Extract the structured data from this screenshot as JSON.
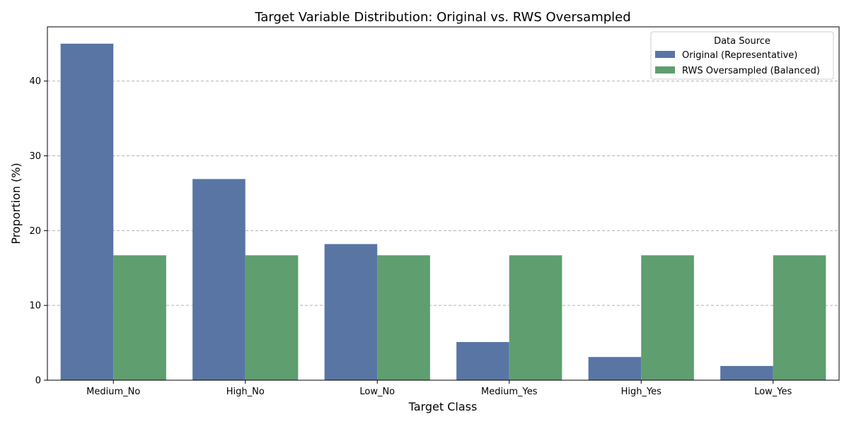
{
  "chart_data": {
    "type": "bar",
    "title": "Target Variable Distribution: Original vs. RWS Oversampled",
    "xlabel": "Target Class",
    "ylabel": "Proportion (%)",
    "categories": [
      "Medium_No",
      "High_No",
      "Low_No",
      "Medium_Yes",
      "High_Yes",
      "Low_Yes"
    ],
    "series": [
      {
        "name": "Original (Representative)",
        "color": "#5975a4",
        "values": [
          45.0,
          26.9,
          18.2,
          5.1,
          3.1,
          1.9
        ]
      },
      {
        "name": "RWS Oversampled (Balanced)",
        "color": "#5f9e6e",
        "values": [
          16.7,
          16.7,
          16.7,
          16.7,
          16.7,
          16.7
        ]
      }
    ],
    "ylim": [
      0,
      47.25
    ],
    "yticks": [
      0,
      10,
      20,
      30,
      40
    ],
    "grid": "y-dashed",
    "legend": {
      "title": "Data Source",
      "placement": "top-right"
    }
  }
}
